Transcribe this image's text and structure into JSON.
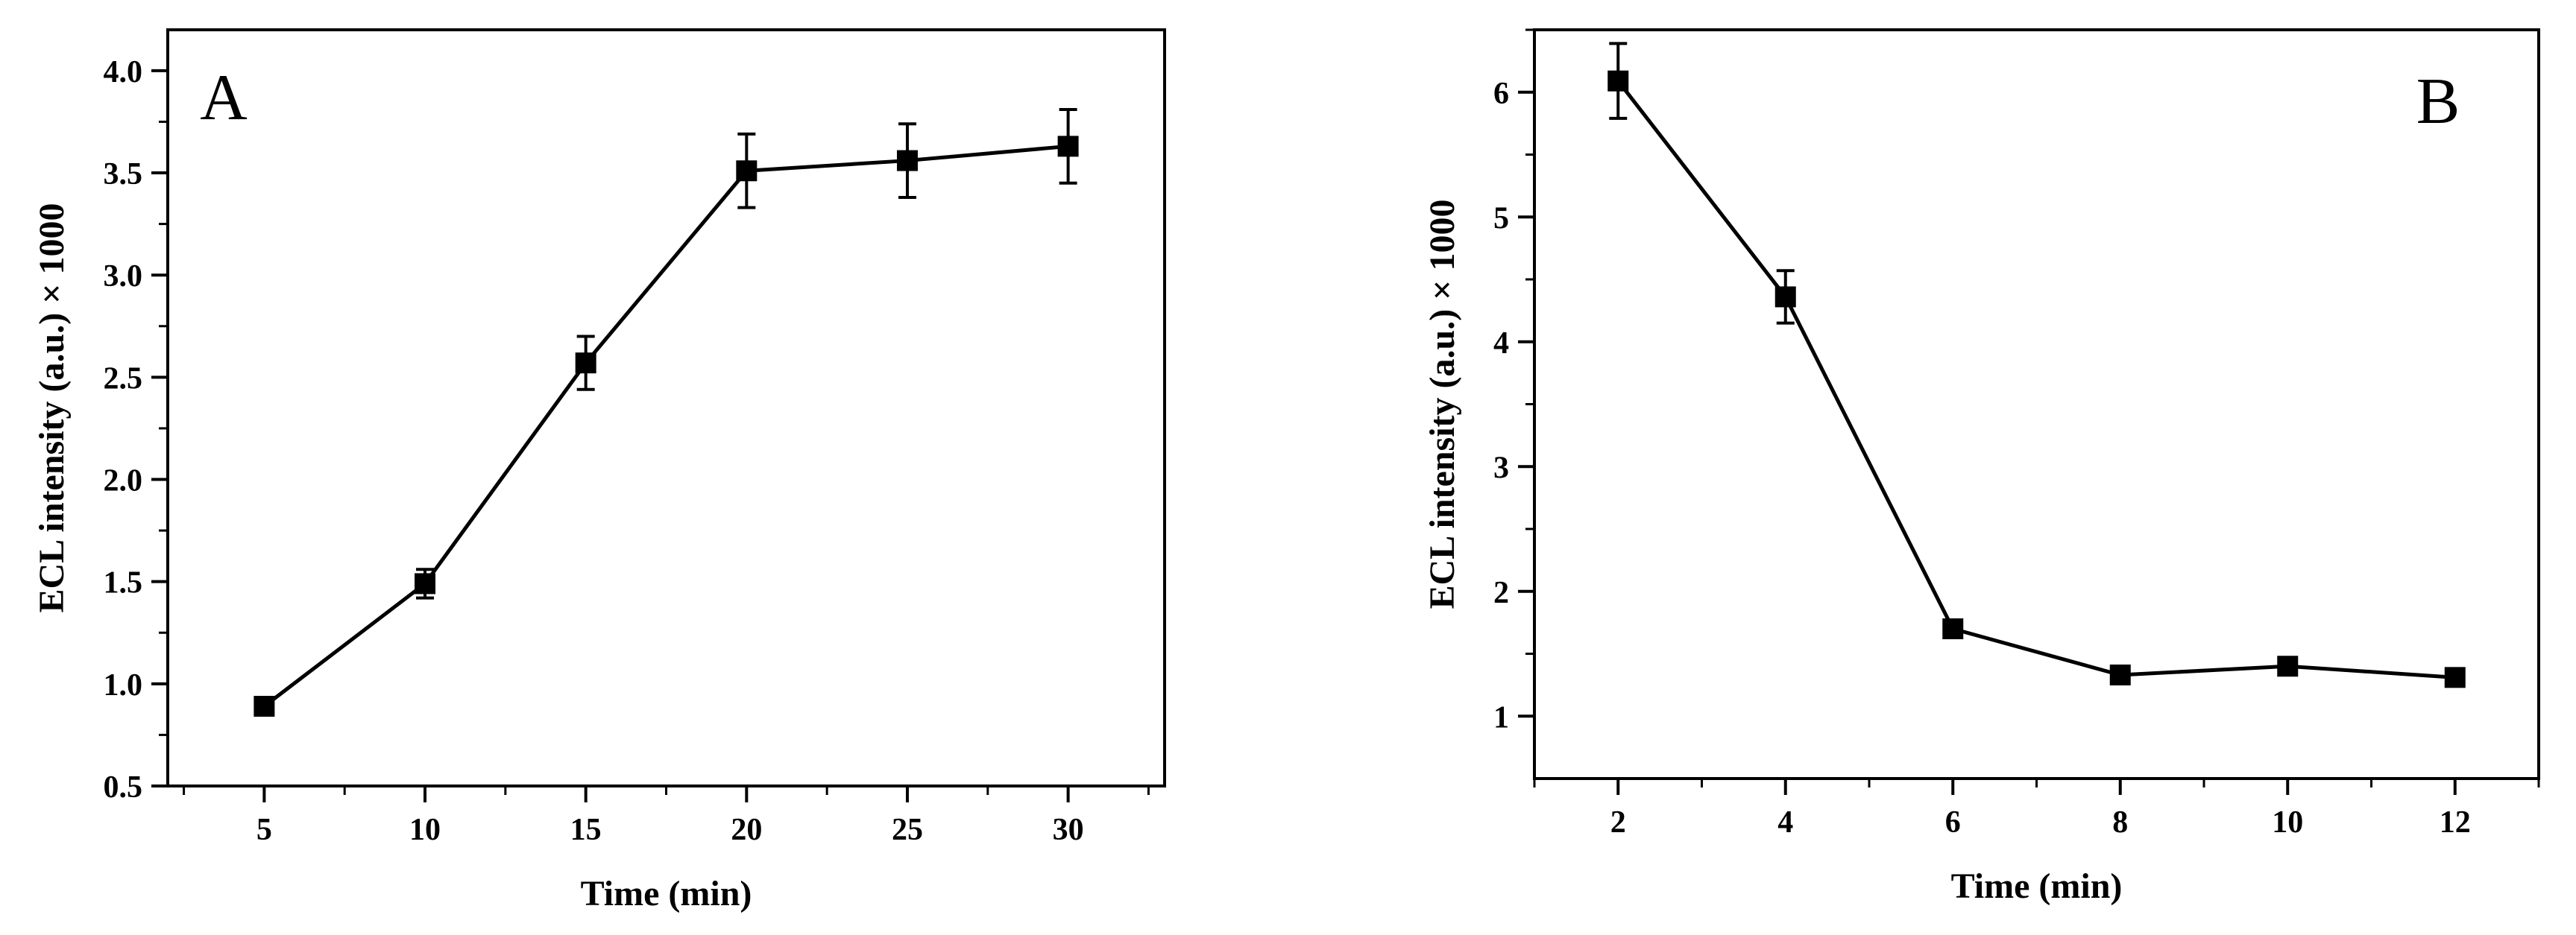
{
  "chart_data": [
    {
      "type": "line",
      "panel_label": "A",
      "xlabel": "Time (min)",
      "ylabel": "ECL intensity (a.u.) × 1000",
      "xlim": [
        2,
        33
      ],
      "ylim": [
        0.5,
        4.2
      ],
      "xticks": [
        5,
        10,
        15,
        20,
        25,
        30
      ],
      "xtick_labels": [
        "5",
        "10",
        "15",
        "20",
        "25",
        "30"
      ],
      "yticks": [
        0.5,
        1.0,
        1.5,
        2.0,
        2.5,
        3.0,
        3.5,
        4.0
      ],
      "ytick_labels": [
        "0.5",
        "1.0",
        "1.5",
        "2.0",
        "2.5",
        "3.0",
        "3.5",
        "4.0"
      ],
      "series": [
        {
          "x": [
            5,
            10,
            15,
            20,
            25,
            30
          ],
          "y": [
            0.89,
            1.49,
            2.57,
            3.51,
            3.56,
            3.63
          ],
          "error": [
            0.02,
            0.07,
            0.13,
            0.18,
            0.18,
            0.18
          ]
        }
      ],
      "grid": false,
      "marker": "square",
      "color": "#000000"
    },
    {
      "type": "line",
      "panel_label": "B",
      "xlabel": "Time (min)",
      "ylabel": "ECL intensity (a.u.) × 1000",
      "xlim": [
        1,
        13
      ],
      "ylim": [
        0.5,
        6.5
      ],
      "xticks": [
        2,
        4,
        6,
        8,
        10,
        12
      ],
      "xtick_labels": [
        "2",
        "4",
        "6",
        "8",
        "10",
        "12"
      ],
      "yticks": [
        1,
        2,
        3,
        4,
        5,
        6
      ],
      "ytick_labels": [
        "1",
        "2",
        "3",
        "4",
        "5",
        "6"
      ],
      "series": [
        {
          "x": [
            2,
            4,
            6,
            8,
            10,
            12
          ],
          "y": [
            6.09,
            4.36,
            1.7,
            1.33,
            1.4,
            1.31
          ],
          "error": [
            0.3,
            0.21,
            0.04,
            0.02,
            0.02,
            0.02
          ]
        }
      ],
      "grid": false,
      "marker": "square",
      "color": "#000000"
    }
  ]
}
